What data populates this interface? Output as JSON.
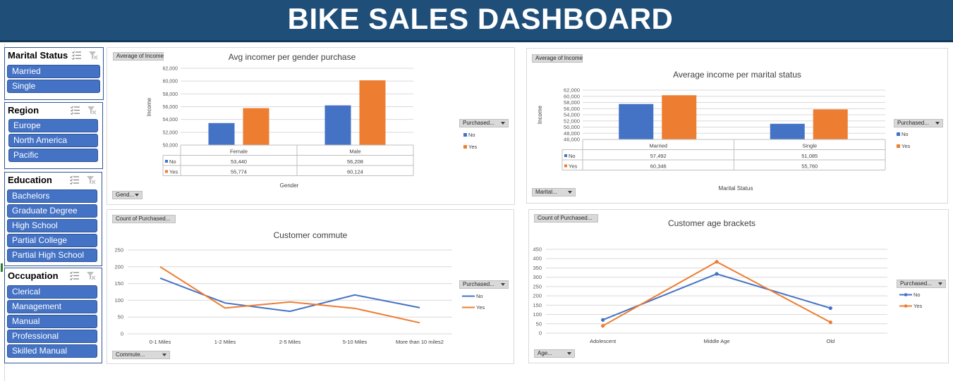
{
  "header": {
    "title": "BIKE SALES DASHBOARD"
  },
  "slicers": {
    "marital": {
      "title": "Marital Status",
      "items": [
        "Married",
        "Single"
      ]
    },
    "region": {
      "title": "Region",
      "items": [
        "Europe",
        "North America",
        "Pacific"
      ]
    },
    "education": {
      "title": "Education",
      "items": [
        "Bachelors",
        "Graduate Degree",
        "High School",
        "Partial College",
        "Partial High School"
      ]
    },
    "occupation": {
      "title": "Occupation",
      "items": [
        "Clerical",
        "Management",
        "Manual",
        "Professional",
        "Skilled Manual"
      ]
    }
  },
  "panels": {
    "gender": {
      "value_button": "Average of Income",
      "axis_button": "Gend...",
      "legend_button": "Purchased..."
    },
    "marital": {
      "value_button": "Average of Income",
      "axis_button": "Marital...",
      "legend_button": "Purchased..."
    },
    "commute": {
      "value_button": "Count of Purchased...",
      "axis_button": "Commute...",
      "legend_button": "Purchased..."
    },
    "age": {
      "value_button": "Count of Purchased...",
      "axis_button": "Age...",
      "legend_button": "Purchased..."
    }
  },
  "colors": {
    "no": "#4472c4",
    "yes": "#ed7d31",
    "title_bar": "#1f4e79",
    "slicer_item": "#4472c4"
  },
  "icons": [
    "multi-select-icon",
    "clear-filter-icon",
    "dropdown-arrow-icon"
  ],
  "chart_data": [
    {
      "type": "bar",
      "title": "Avg incomer per gender purchase",
      "xlabel": "Gender",
      "ylabel": "Income",
      "categories": [
        "Female",
        "Male"
      ],
      "series": [
        {
          "name": "No",
          "values": [
            53440,
            56208
          ]
        },
        {
          "name": "Yes",
          "values": [
            55774,
            60124
          ]
        }
      ],
      "ylim": [
        50000,
        62000
      ],
      "yticks": [
        "62,000",
        "60,000",
        "58,000",
        "56,000",
        "54,000",
        "52,000",
        "50,000"
      ],
      "table_values": {
        "No": [
          "53,440",
          "56,208"
        ],
        "Yes": [
          "55,774",
          "60,124"
        ]
      },
      "legend": "right",
      "grid": true
    },
    {
      "type": "bar",
      "title": "Average income per marital status",
      "xlabel": "Marital Status",
      "ylabel": "Income",
      "categories": [
        "Married",
        "Single"
      ],
      "series": [
        {
          "name": "No",
          "values": [
            57492,
            51085
          ]
        },
        {
          "name": "Yes",
          "values": [
            60346,
            55760
          ]
        }
      ],
      "ylim": [
        46000,
        62000
      ],
      "yticks": [
        "62,000",
        "60,000",
        "58,000",
        "56,000",
        "54,000",
        "52,000",
        "50,000",
        "48,000",
        "46,000"
      ],
      "table_values": {
        "No": [
          "57,492",
          "51,085"
        ],
        "Yes": [
          "60,346",
          "55,760"
        ]
      },
      "legend": "right",
      "grid": true
    },
    {
      "type": "line",
      "title": "Customer commute",
      "categories": [
        "0-1 Miles",
        "1-2 Miles",
        "2-5 Miles",
        "5-10 Miles",
        "More than 10 miles2"
      ],
      "series": [
        {
          "name": "No",
          "values": [
            166,
            92,
            67,
            116,
            78
          ]
        },
        {
          "name": "Yes",
          "values": [
            200,
            77,
            95,
            76,
            33
          ]
        }
      ],
      "ylim": [
        0,
        250
      ],
      "yticks": [
        "250",
        "200",
        "150",
        "100",
        "50",
        "0"
      ],
      "legend": "right",
      "grid": true
    },
    {
      "type": "line",
      "title": "Customer age brackets",
      "categories": [
        "Adolescent",
        "Middle Age",
        "Old"
      ],
      "series": [
        {
          "name": "No",
          "values": [
            71,
            318,
            134
          ]
        },
        {
          "name": "Yes",
          "values": [
            39,
            383,
            58
          ]
        }
      ],
      "ylim": [
        0,
        450
      ],
      "yticks": [
        "450",
        "400",
        "350",
        "300",
        "250",
        "200",
        "150",
        "100",
        "50",
        "0"
      ],
      "legend": "right",
      "grid": true
    }
  ]
}
